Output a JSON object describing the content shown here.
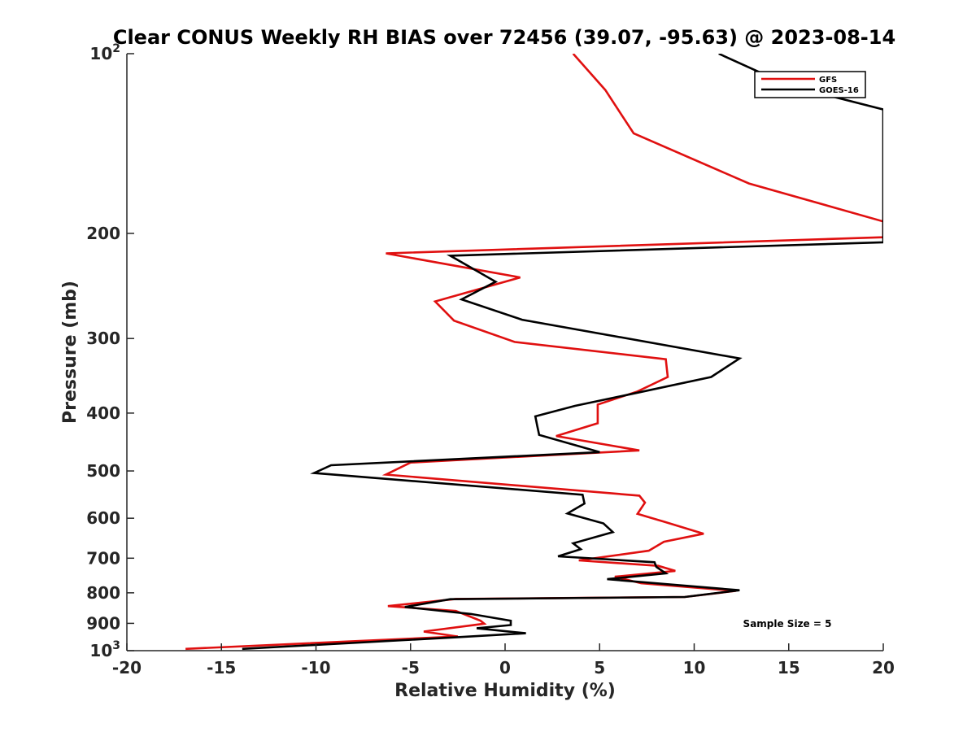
{
  "chart_data": {
    "type": "line",
    "title": "Clear CONUS Weekly RH BIAS over 72456 (39.07, -95.63) @ 2023-08-14",
    "xlabel": "Relative Humidity (%)",
    "ylabel": "Pressure (mb)",
    "xlim": [
      -20,
      20
    ],
    "ylim": [
      100,
      1000
    ],
    "yscale": "log",
    "y_reversed": true,
    "x_ticks": [
      "-20",
      "-15",
      "-10",
      "-5",
      "0",
      "5",
      "10",
      "15",
      "20"
    ],
    "x_tick_values": [
      -20,
      -15,
      -10,
      -5,
      0,
      5,
      10,
      15,
      20
    ],
    "y_tick_values": [
      100,
      200,
      300,
      400,
      500,
      600,
      700,
      800,
      900,
      1000
    ],
    "y_tick_labels": [
      {
        "base": "10",
        "exp": "2"
      },
      {
        "base": "200",
        "exp": ""
      },
      {
        "base": "300",
        "exp": ""
      },
      {
        "base": "400",
        "exp": ""
      },
      {
        "base": "500",
        "exp": ""
      },
      {
        "base": "600",
        "exp": ""
      },
      {
        "base": "700",
        "exp": ""
      },
      {
        "base": "800",
        "exp": ""
      },
      {
        "base": "900",
        "exp": ""
      },
      {
        "base": "10",
        "exp": "3"
      }
    ],
    "legend_position": "top-right",
    "annotation": "Sample Size = 5",
    "series": [
      {
        "name": "GFS",
        "color": "#e01010",
        "points": [
          [
            3.6,
            100
          ],
          [
            5.3,
            115
          ],
          [
            6.8,
            136
          ],
          [
            12.9,
            165
          ],
          [
            20.0,
            191
          ],
          [
            20.0,
            203
          ],
          [
            -6.3,
            216
          ],
          [
            0.8,
            237
          ],
          [
            -3.7,
            260
          ],
          [
            -2.7,
            280
          ],
          [
            0.5,
            304
          ],
          [
            8.5,
            325
          ],
          [
            8.6,
            348
          ],
          [
            7.0,
            368
          ],
          [
            4.9,
            387
          ],
          [
            4.9,
            405
          ],
          [
            4.9,
            416
          ],
          [
            2.7,
            437
          ],
          [
            7.1,
            462
          ],
          [
            -5.0,
            484
          ],
          [
            -6.3,
            507
          ],
          [
            7.1,
            550
          ],
          [
            7.4,
            565
          ],
          [
            7.0,
            590
          ],
          [
            8.4,
            608
          ],
          [
            10.5,
            637
          ],
          [
            8.4,
            657
          ],
          [
            7.6,
            680
          ],
          [
            3.9,
            706
          ],
          [
            8.1,
            721
          ],
          [
            9.0,
            735
          ],
          [
            5.8,
            752
          ],
          [
            7.2,
            771
          ],
          [
            12.2,
            794
          ],
          [
            9.5,
            813
          ],
          [
            -2.6,
            819
          ],
          [
            -6.2,
            842
          ],
          [
            -2.6,
            858
          ],
          [
            -1.3,
            891
          ],
          [
            -1.1,
            901
          ],
          [
            -4.3,
            929
          ],
          [
            -2.5,
            947
          ],
          [
            -16.9,
            993
          ]
        ]
      },
      {
        "name": "GOES-16",
        "color": "#000000",
        "points": [
          [
            11.3,
            100
          ],
          [
            15.0,
            113
          ],
          [
            20.0,
            124
          ],
          [
            20.0,
            207
          ],
          [
            -2.9,
            218
          ],
          [
            -0.5,
            241
          ],
          [
            -2.3,
            258
          ],
          [
            0.9,
            279
          ],
          [
            12.4,
            324
          ],
          [
            10.9,
            348
          ],
          [
            6.6,
            372
          ],
          [
            3.7,
            389
          ],
          [
            1.6,
            405
          ],
          [
            1.7,
            420
          ],
          [
            1.8,
            435
          ],
          [
            5.0,
            465
          ],
          [
            -9.2,
            489
          ],
          [
            -10.1,
            504
          ],
          [
            4.1,
            548
          ],
          [
            4.2,
            567
          ],
          [
            3.3,
            589
          ],
          [
            5.2,
            612
          ],
          [
            5.7,
            633
          ],
          [
            3.6,
            661
          ],
          [
            4.0,
            676
          ],
          [
            2.8,
            695
          ],
          [
            7.9,
            711
          ],
          [
            8.0,
            724
          ],
          [
            8.5,
            742
          ],
          [
            5.4,
            759
          ],
          [
            12.4,
            792
          ],
          [
            9.5,
            813
          ],
          [
            -2.9,
            820
          ],
          [
            -5.3,
            845
          ],
          [
            -1.8,
            868
          ],
          [
            0.3,
            891
          ],
          [
            0.3,
            906
          ],
          [
            -1.5,
            917
          ],
          [
            1.1,
            935
          ],
          [
            -2.6,
            950
          ],
          [
            -13.9,
            993
          ]
        ]
      }
    ]
  }
}
